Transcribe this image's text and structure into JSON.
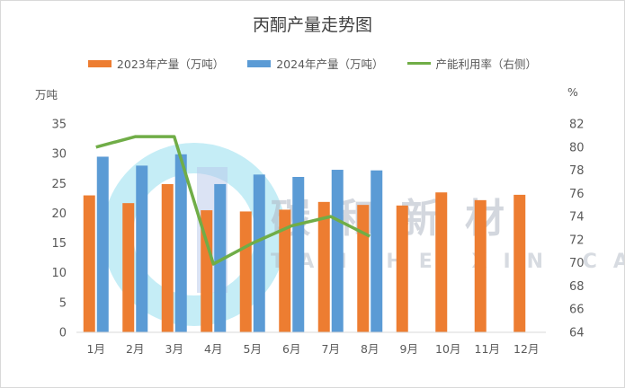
{
  "chart_data": {
    "type": "bar",
    "title": "丙酮产量走势图",
    "categories": [
      "1月",
      "2月",
      "3月",
      "4月",
      "5月",
      "6月",
      "7月",
      "8月",
      "9月",
      "10月",
      "11月",
      "12月"
    ],
    "series": [
      {
        "name": "2023年产量（万吨）",
        "type": "bar",
        "color": "#ed7d31",
        "axis": "left",
        "values": [
          23.0,
          21.7,
          24.9,
          20.5,
          20.3,
          20.6,
          21.9,
          21.4,
          21.3,
          23.5,
          22.2,
          23.1
        ]
      },
      {
        "name": "2024年产量（万吨）",
        "type": "bar",
        "color": "#5b9bd5",
        "axis": "left",
        "values": [
          29.5,
          28.0,
          29.9,
          24.9,
          26.5,
          26.1,
          27.3,
          27.2,
          null,
          null,
          null,
          null
        ]
      },
      {
        "name": "产能利用率（右侧）",
        "type": "line",
        "color": "#70ad47",
        "axis": "right",
        "values": [
          80.0,
          80.9,
          80.9,
          69.9,
          71.7,
          73.2,
          74.0,
          72.3,
          null,
          null,
          null,
          null
        ]
      }
    ],
    "ylabel_left": "万吨",
    "ylabel_right": "%",
    "ylim_left": [
      0,
      35
    ],
    "yticks_left": [
      0,
      5,
      10,
      15,
      20,
      25,
      30,
      35
    ],
    "ylim_right": [
      64,
      82
    ],
    "yticks_right": [
      64,
      66,
      68,
      70,
      72,
      74,
      76,
      78,
      80,
      82
    ],
    "grid": false,
    "legend_position": "top"
  },
  "watermark": {
    "text": "碳和新材",
    "subtext": "TAN HE XIN CAI"
  }
}
